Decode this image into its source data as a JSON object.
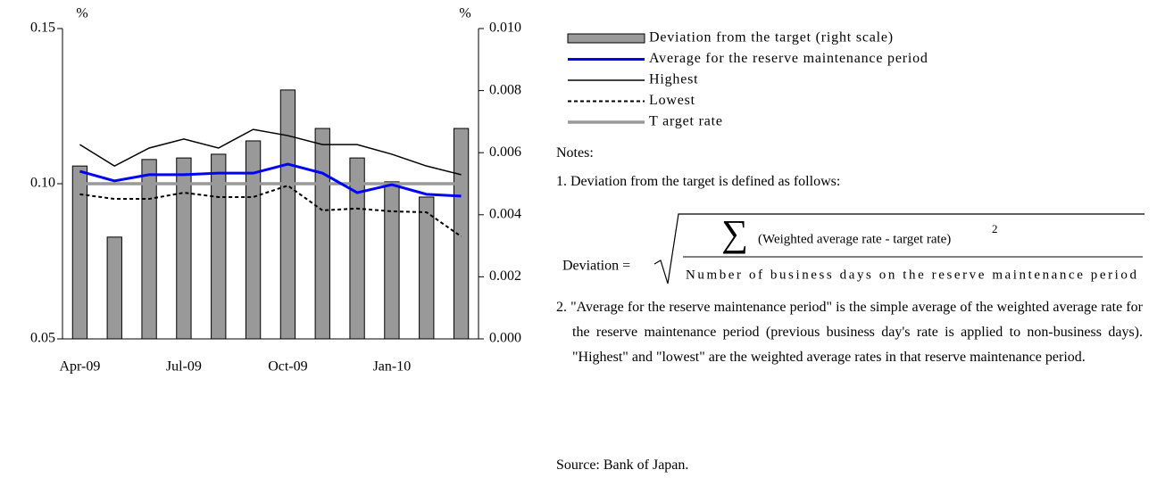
{
  "chart_data": {
    "type": "combo",
    "y_unit": "%",
    "y2_unit": "%",
    "categories": [
      "Apr-09",
      null,
      null,
      "Jul-09",
      null,
      null,
      "Oct-09",
      null,
      null,
      "Jan-10",
      null,
      null
    ],
    "ylim": [
      0.05,
      0.15
    ],
    "yticks": [
      0.05,
      {
        "value": 0.1,
        "label": "0.10"
      },
      0.15
    ],
    "y2lim": [
      0,
      0.01
    ],
    "y2ticks": [
      {
        "value": 0,
        "label": "0.000"
      },
      {
        "value": 0.002,
        "label": "0.002"
      },
      {
        "value": 0.004,
        "label": "0.004"
      },
      {
        "value": 0.006,
        "label": "0.006"
      },
      {
        "value": 0.008,
        "label": "0.008"
      },
      {
        "value": 0.01,
        "label": "0.010"
      }
    ],
    "series": [
      {
        "name": "Deviation from the target (right scale)",
        "type": "bar",
        "axis": "y2",
        "color": "#999999",
        "values": [
          0.00557,
          0.00328,
          0.00578,
          0.00583,
          0.00595,
          0.00638,
          0.00802,
          0.00678,
          0.00583,
          0.00506,
          0.00457,
          0.00678
        ]
      },
      {
        "name": "Average for the reserve maintenance period",
        "type": "line",
        "color": "#0000ff",
        "width": 3,
        "values": [
          0.104,
          0.1009,
          0.1029,
          0.1029,
          0.1034,
          0.1034,
          0.1063,
          0.1034,
          0.0971,
          0.0997,
          0.0966,
          0.096
        ]
      },
      {
        "name": "Highest",
        "type": "line",
        "color": "#000000",
        "width": 1.5,
        "values": [
          0.1126,
          0.1057,
          0.1115,
          0.1144,
          0.1115,
          0.1175,
          0.1155,
          0.1126,
          0.1126,
          0.1095,
          0.1057,
          0.1029
        ]
      },
      {
        "name": "Lowest",
        "type": "line",
        "color": "#000000",
        "width": 2,
        "dashed": true,
        "values": [
          0.0966,
          0.0951,
          0.0951,
          0.0971,
          0.0957,
          0.0957,
          0.0994,
          0.0914,
          0.092,
          0.0911,
          0.0908,
          0.083
        ]
      },
      {
        "name": "T arget rate",
        "type": "line",
        "color": "#999999",
        "width": 3.5,
        "values": [
          0.1,
          0.1,
          0.1,
          0.1,
          0.1,
          0.1,
          0.1,
          0.1,
          0.1,
          0.1,
          0.1,
          0.1
        ]
      }
    ]
  },
  "notes": {
    "heading": "Notes:",
    "item1": "1. Deviation from the target is defined as follows:",
    "formula": {
      "lhs": "Deviation =",
      "sum_symbol": "∑",
      "numerator": "(Weighted average rate - target rate)",
      "exponent": "2",
      "denominator": "Number of business days on the reserve maintenance period"
    },
    "item2": "2. \"Average for the reserve maintenance period\" is the simple average of the weighted average rate for the reserve maintenance period (previous business day's rate is applied to non-business days). \"Highest\" and \"lowest\" are the weighted average rates in that reserve maintenance period."
  },
  "source": "Source: Bank of Japan."
}
